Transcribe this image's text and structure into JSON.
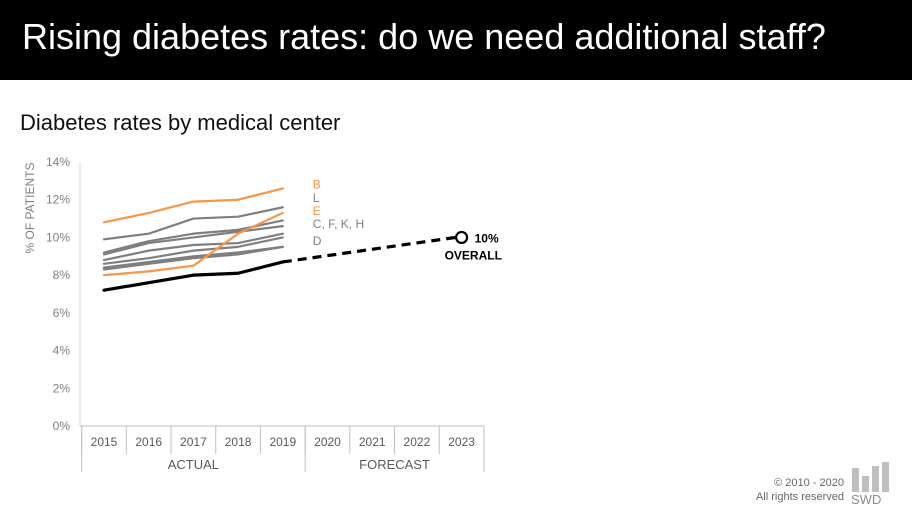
{
  "header": {
    "title": "Rising diabetes rates: do we need additional staff?"
  },
  "chart_title": "Diabetes rates by medical center",
  "chart_data": {
    "type": "line",
    "title": "Diabetes rates by medical center",
    "ylabel": "% OF PATIENTS",
    "xlabel": "",
    "x": [
      "2015",
      "2016",
      "2017",
      "2018",
      "2019",
      "2020",
      "2021",
      "2022",
      "2023"
    ],
    "x_groups": [
      {
        "label": "ACTUAL",
        "from": "2015",
        "to": "2019"
      },
      {
        "label": "FORECAST",
        "from": "2020",
        "to": "2023"
      }
    ],
    "yticks": [
      "0%",
      "2%",
      "4%",
      "6%",
      "8%",
      "10%",
      "12%",
      "14%"
    ],
    "ylim": [
      0,
      14
    ],
    "grid": false,
    "colors": {
      "highlight": "#F79646",
      "other": "#7F7F7F",
      "overall": "#000000"
    },
    "series": [
      {
        "name": "B",
        "color": "highlight",
        "values": [
          10.8,
          11.3,
          11.9,
          12.0,
          12.6
        ]
      },
      {
        "name": "L",
        "color": "other",
        "values": [
          9.9,
          10.2,
          11.0,
          11.1,
          11.6
        ]
      },
      {
        "name": "E",
        "color": "highlight",
        "values": [
          8.0,
          8.2,
          8.5,
          10.2,
          11.3
        ]
      },
      {
        "name": "",
        "color": "other",
        "values": [
          9.2,
          9.8,
          10.2,
          10.4,
          10.9
        ]
      },
      {
        "name": "",
        "color": "other",
        "values": [
          9.1,
          9.7,
          10.0,
          10.3,
          10.6
        ]
      },
      {
        "name": "",
        "color": "other",
        "values": [
          8.8,
          9.3,
          9.6,
          9.7,
          10.2
        ]
      },
      {
        "name": "",
        "color": "other",
        "values": [
          8.6,
          8.9,
          9.3,
          9.5,
          10.0
        ]
      },
      {
        "name": "",
        "color": "other",
        "values": [
          8.4,
          8.7,
          9.0,
          9.2,
          9.5
        ]
      },
      {
        "name": "",
        "color": "other",
        "values": [
          8.3,
          8.6,
          8.9,
          9.1,
          9.5
        ]
      },
      {
        "name": "OVERALL",
        "color": "overall",
        "values": [
          7.2,
          7.6,
          8.0,
          8.1,
          8.7
        ]
      }
    ],
    "forecast": {
      "name": "OVERALL",
      "from": "2019",
      "to": "2023",
      "values": [
        8.7,
        10.0
      ]
    },
    "labels": [
      {
        "text": "B",
        "color": "highlight",
        "y": 12.8
      },
      {
        "text": "L",
        "color": "other",
        "y": 12.1
      },
      {
        "text": "E",
        "color": "highlight",
        "y": 11.4
      },
      {
        "text": "C, F, K, H",
        "color": "other",
        "y": 10.7
      },
      {
        "text": "D",
        "color": "other",
        "y": 9.8
      }
    ],
    "annotation": {
      "value": "10%",
      "label": "OVERALL",
      "x": "2023",
      "y": 10.0
    }
  },
  "footer": {
    "copyright": "© 2010 - 2020",
    "rights": "All rights reserved",
    "logo_text": "SWD"
  }
}
